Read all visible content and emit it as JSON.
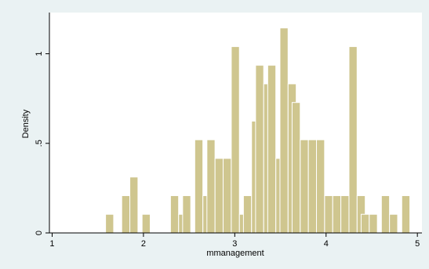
{
  "chart_data": {
    "type": "bar",
    "title": "",
    "xlabel": "mmanagement",
    "ylabel": "Density",
    "xlim": [
      0.97,
      5.05
    ],
    "ylim": [
      0,
      1.23
    ],
    "xticks": [
      1,
      2,
      3,
      4,
      5
    ],
    "xtick_labels": [
      "1",
      "2",
      "3",
      "4",
      "5"
    ],
    "yticks": [
      0,
      0.5,
      1
    ],
    "ytick_labels": [
      "0",
      ".5",
      "1"
    ],
    "grid": false,
    "legend": "none",
    "bin_width": 0.0887,
    "bins": [
      {
        "x0": 1.585,
        "value": 0.104
      },
      {
        "x0": 1.762,
        "value": 0.208
      },
      {
        "x0": 1.851,
        "value": 0.312
      },
      {
        "x0": 1.985,
        "value": 0.104
      },
      {
        "x0": 2.296,
        "value": 0.208
      },
      {
        "x0": 2.385,
        "value": 0.104
      },
      {
        "x0": 2.429,
        "value": 0.208
      },
      {
        "x0": 2.562,
        "value": 0.52
      },
      {
        "x0": 2.651,
        "value": 0.208
      },
      {
        "x0": 2.695,
        "value": 0.52
      },
      {
        "x0": 2.784,
        "value": 0.416
      },
      {
        "x0": 2.873,
        "value": 0.416
      },
      {
        "x0": 2.962,
        "value": 1.04
      },
      {
        "x0": 3.051,
        "value": 0.104
      },
      {
        "x0": 3.095,
        "value": 0.208
      },
      {
        "x0": 3.184,
        "value": 0.624
      },
      {
        "x0": 3.228,
        "value": 0.936
      },
      {
        "x0": 3.317,
        "value": 0.832
      },
      {
        "x0": 3.361,
        "value": 0.936
      },
      {
        "x0": 3.45,
        "value": 0.416
      },
      {
        "x0": 3.495,
        "value": 1.144
      },
      {
        "x0": 3.584,
        "value": 0.832
      },
      {
        "x0": 3.628,
        "value": 0.728
      },
      {
        "x0": 3.717,
        "value": 0.52
      },
      {
        "x0": 3.806,
        "value": 0.52
      },
      {
        "x0": 3.895,
        "value": 0.52
      },
      {
        "x0": 3.984,
        "value": 0.208
      },
      {
        "x0": 4.073,
        "value": 0.208
      },
      {
        "x0": 4.162,
        "value": 0.208
      },
      {
        "x0": 4.251,
        "value": 1.04
      },
      {
        "x0": 4.34,
        "value": 0.208
      },
      {
        "x0": 4.384,
        "value": 0.104
      },
      {
        "x0": 4.473,
        "value": 0.104
      },
      {
        "x0": 4.606,
        "value": 0.208
      },
      {
        "x0": 4.695,
        "value": 0.104
      },
      {
        "x0": 4.829,
        "value": 0.208
      }
    ]
  },
  "colors": {
    "background": "#eaf2f3",
    "plot_area": "#ffffff",
    "bar_fill": "#cfc68f",
    "bar_stroke": "#ffffff",
    "axis": "#000000"
  }
}
